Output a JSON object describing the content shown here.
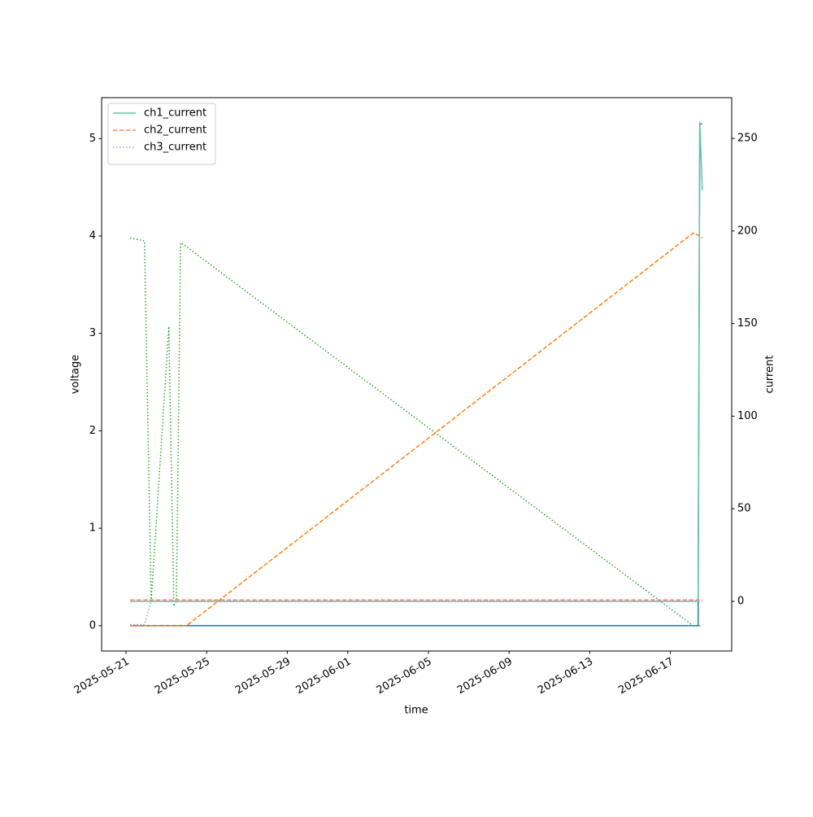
{
  "chart_data": {
    "type": "line",
    "xlabel": "time",
    "ylabel": "voltage",
    "y2label": "current",
    "x": [
      "2025-05-21 05:00",
      "2025-05-21 22:00",
      "2025-05-22 06:00",
      "2025-05-23 03:00",
      "2025-05-23 09:00",
      "2025-05-23 12:00",
      "2025-05-23 17:00",
      "2025-05-24 00:00",
      "2025-06-18 03:00",
      "2025-06-18 09:00",
      "2025-06-18 11:00",
      "2025-06-18 14:00"
    ],
    "xlim": [
      "2025-05-19 19:00",
      "2025-06-20 01:00"
    ],
    "xticks": [
      "2025-05-21",
      "2025-05-25",
      "2025-05-29",
      "2025-06-01",
      "2025-06-05",
      "2025-06-09",
      "2025-06-13",
      "2025-06-17"
    ],
    "ylim": [
      -0.26,
      5.42
    ],
    "yticks": [
      0,
      1,
      2,
      3,
      4,
      5
    ],
    "y2lim": [
      -26.8,
      272
    ],
    "y2ticks": [
      0,
      50,
      100,
      150,
      200,
      250
    ],
    "legend": "upper left",
    "series": [
      {
        "color": "#1f77b4",
        "linestyle": "solid",
        "values": [
          0,
          0,
          0,
          0,
          0,
          0,
          0,
          0,
          0,
          0,
          5.15,
          5.15
        ]
      },
      {
        "color": "#ff7f0e",
        "linestyle": "dashed",
        "values": [
          0,
          0,
          0,
          0,
          0,
          0,
          0,
          0,
          4.03,
          4.01,
          4.0,
          3.98
        ]
      },
      {
        "color": "#2ca02c",
        "linestyle": "dotted",
        "values": [
          3.98,
          3.95,
          0.25,
          3.07,
          0.2,
          0.25,
          3.93,
          3.89,
          0,
          0,
          0,
          0
        ]
      },
      {
        "name": "ch1_current",
        "axis": "y2",
        "color": "#66c2a5",
        "linestyle": "solid",
        "values": [
          0,
          0,
          0,
          0,
          0,
          0,
          0,
          0,
          0,
          0,
          259,
          222
        ]
      },
      {
        "name": "ch2_current",
        "axis": "y2",
        "color": "#fc8d62",
        "linestyle": "dashed",
        "values": [
          0.8,
          0.8,
          0.8,
          0.8,
          0.8,
          0.8,
          0.8,
          0.8,
          0.8,
          0.8,
          0.8,
          0.8
        ]
      },
      {
        "name": "ch3_current",
        "axis": "y2",
        "color": "#8da0cb",
        "linestyle": "dotted",
        "values": [
          -12.5,
          -12.5,
          0,
          0,
          0,
          0,
          0,
          0,
          0,
          0,
          0,
          0
        ]
      }
    ]
  }
}
